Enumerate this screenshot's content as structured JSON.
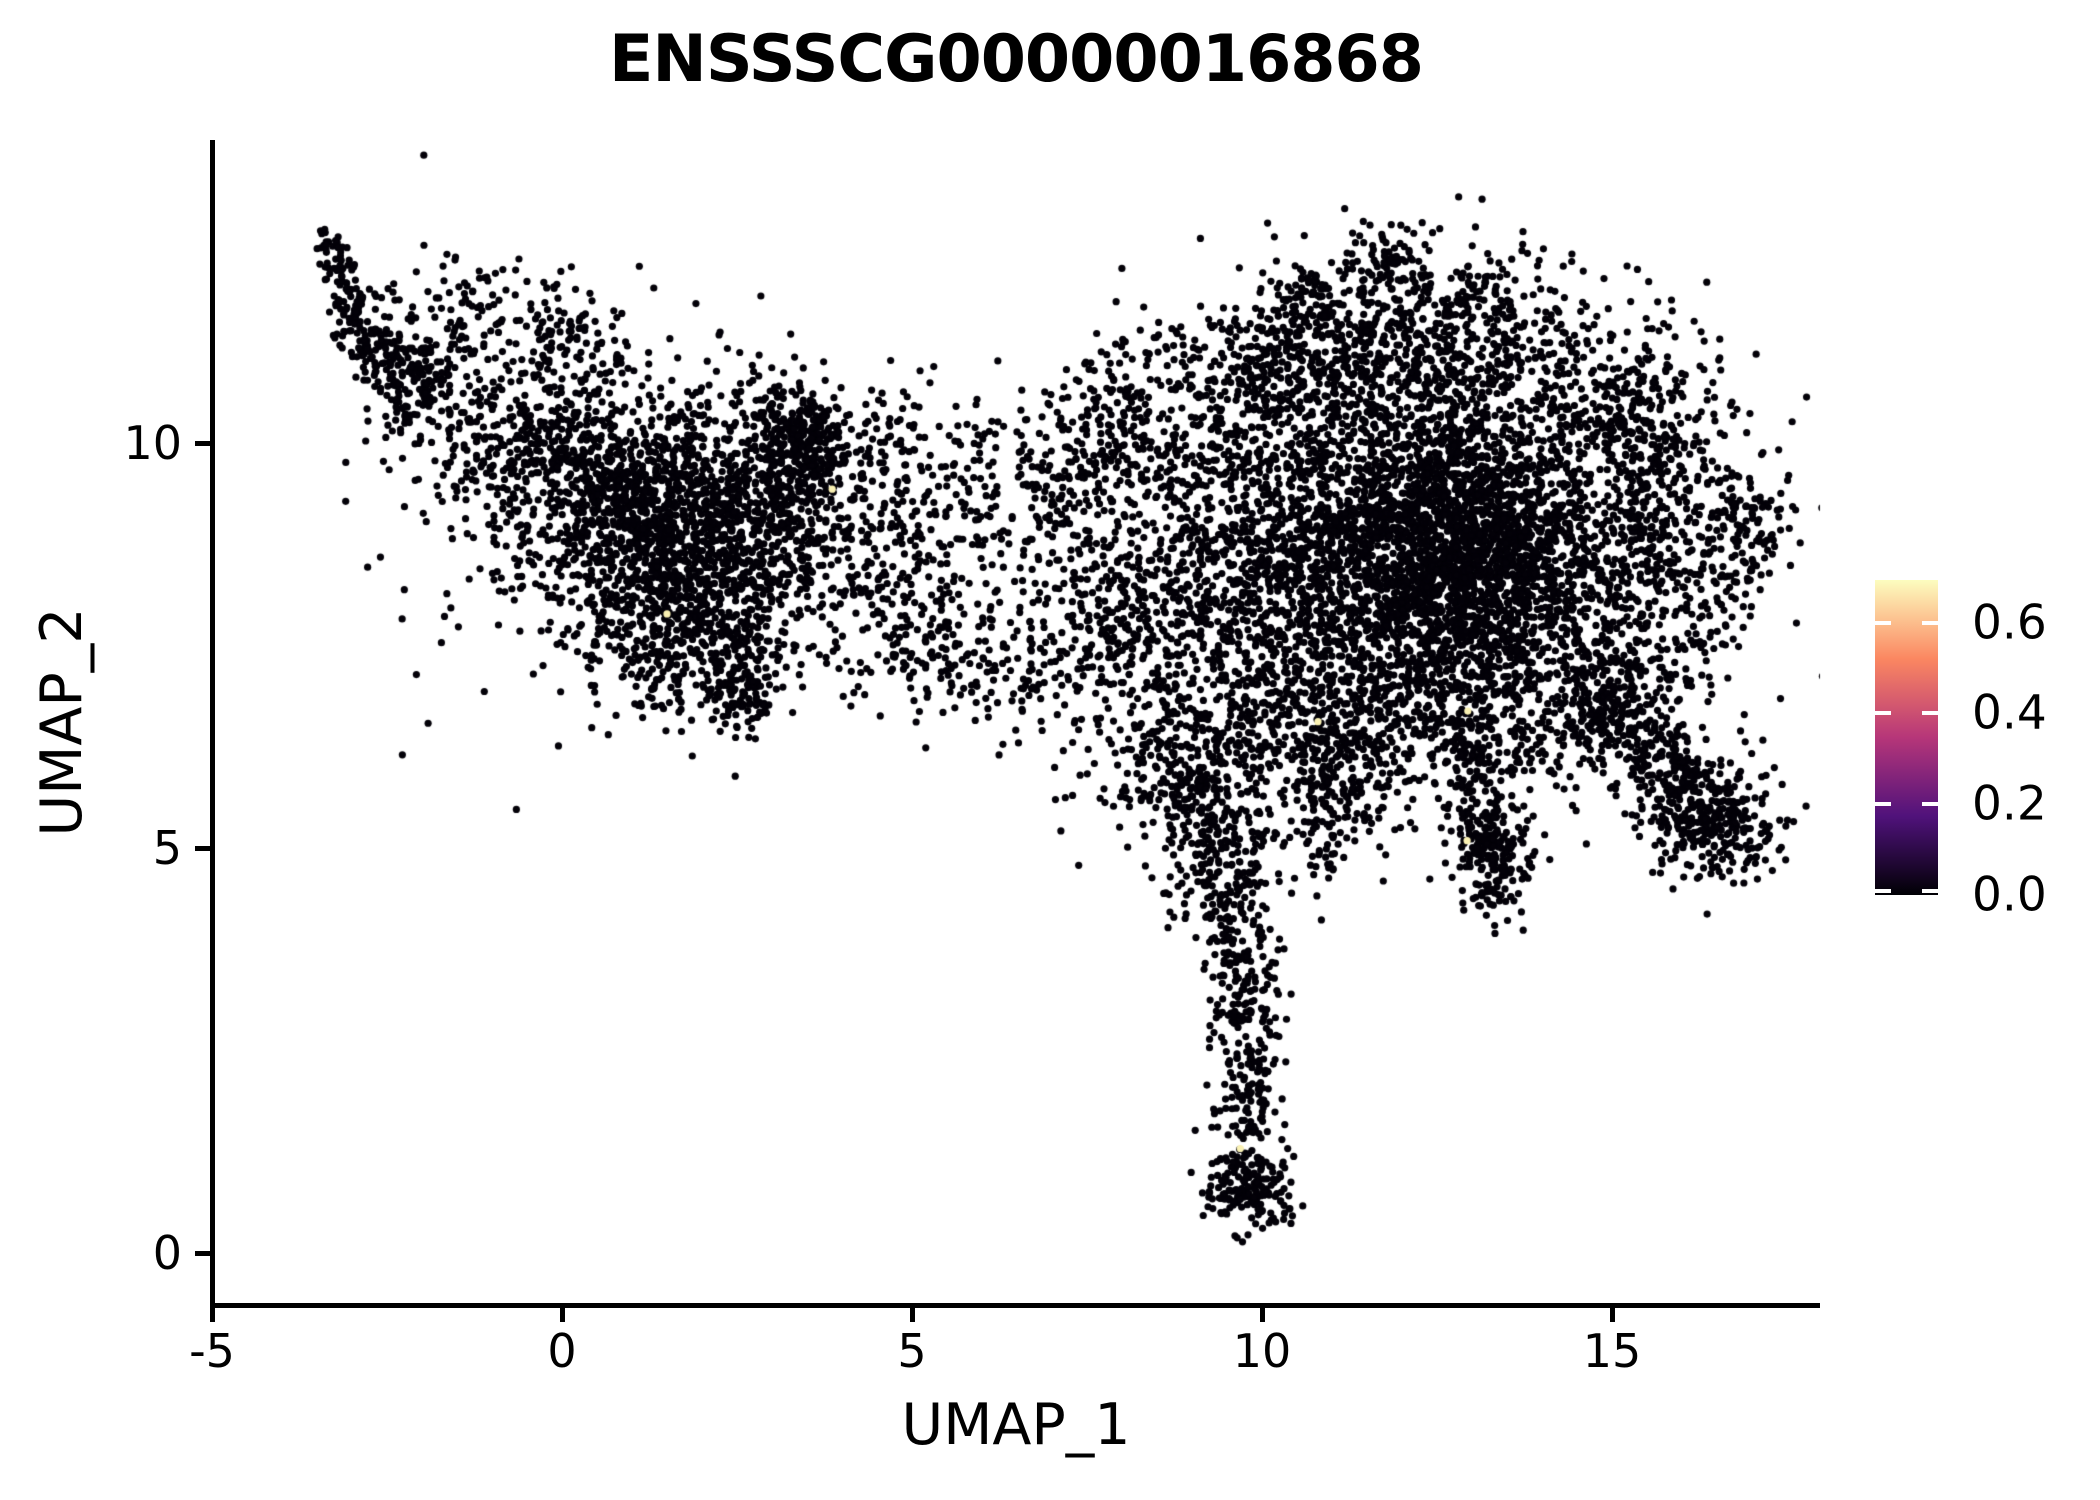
{
  "title": "ENSSSCG00000016868",
  "axes": {
    "x": {
      "label": "UMAP_1",
      "ticks": [
        -5,
        0,
        5,
        10,
        15
      ],
      "tick_labels": [
        "-5",
        "0",
        "5",
        "10",
        "15"
      ]
    },
    "y": {
      "label": "UMAP_2",
      "ticks": [
        0,
        5,
        10
      ],
      "tick_labels": [
        "0",
        "5",
        "10"
      ]
    }
  },
  "colorbar": {
    "tick_values": [
      0.6,
      0.4,
      0.2,
      0.0
    ],
    "tick_labels": [
      "0.6",
      "0.4",
      "0.2",
      "0.0"
    ],
    "value_max": 0.694,
    "colormap": "magma",
    "gradient_stops": [
      "#000004",
      "#50127B",
      "#B63679",
      "#FB8761",
      "#FCFDBF"
    ]
  },
  "chart_data": {
    "type": "scatter",
    "title": "ENSSSCG00000016868",
    "xlabel": "UMAP_1",
    "ylabel": "UMAP_2",
    "xlim": [
      -5.7,
      18.0
    ],
    "ylim": [
      -0.65,
      13.8
    ],
    "x_ticks": [
      -5,
      0,
      5,
      10,
      15
    ],
    "y_ticks": [
      0,
      5,
      10
    ],
    "grid": false,
    "legend_position": "right-colorbar",
    "color_limits": [
      0,
      0.694
    ],
    "colormap": "magma",
    "point_color": "#030108",
    "highlight_color": "#FAF1B3",
    "point_radius_px": 3.6,
    "seed": 1337,
    "n_points_total": 13846,
    "clusters": [
      {
        "type": "strip",
        "x1": -3.35,
        "y1": 12.65,
        "x2": -2.95,
        "y2": 11.35,
        "sigma": 0.12,
        "n": 90
      },
      {
        "type": "strip",
        "x1": -3.05,
        "y1": 11.6,
        "x2": -1.95,
        "y2": 10.5,
        "sigma": 0.26,
        "n": 170
      },
      {
        "type": "gauss",
        "cx": -1.85,
        "cy": 10.9,
        "sx": 0.5,
        "sy": 0.55,
        "n": 150
      },
      {
        "type": "strip",
        "x1": -1.6,
        "y1": 11.9,
        "x2": 0.4,
        "y2": 11.5,
        "sigma": 0.33,
        "n": 70
      },
      {
        "type": "strip",
        "x1": -0.5,
        "y1": 11.35,
        "x2": 0.9,
        "y2": 10.9,
        "sigma": 0.3,
        "n": 60
      },
      {
        "type": "gauss",
        "cx": -0.6,
        "cy": 10.15,
        "sx": 0.7,
        "sy": 0.5,
        "n": 230
      },
      {
        "type": "gauss",
        "cx": 0.8,
        "cy": 9.3,
        "sx": 0.9,
        "sy": 0.75,
        "n": 900
      },
      {
        "type": "gauss",
        "cx": 2.2,
        "cy": 8.6,
        "sx": 0.9,
        "sy": 0.8,
        "n": 820
      },
      {
        "type": "gauss",
        "cx": 3.3,
        "cy": 9.6,
        "sx": 0.7,
        "sy": 0.6,
        "n": 450
      },
      {
        "type": "gauss",
        "cx": 3.42,
        "cy": 10.1,
        "sx": 0.26,
        "sy": 0.2,
        "n": 130
      },
      {
        "type": "gauss",
        "cx": 1.8,
        "cy": 7.5,
        "sx": 0.8,
        "sy": 0.45,
        "n": 260
      },
      {
        "type": "strip",
        "x1": 2.1,
        "y1": 7.0,
        "x2": 2.95,
        "y2": 6.75,
        "sigma": 0.22,
        "n": 80
      },
      {
        "type": "gauss",
        "cx": 1.2,
        "cy": 9.1,
        "sx": 1.6,
        "sy": 1.25,
        "n": 260
      },
      {
        "type": "gauss",
        "cx": 4.8,
        "cy": 8.2,
        "sx": 0.65,
        "sy": 0.8,
        "n": 190
      },
      {
        "type": "gauss",
        "cx": 6.2,
        "cy": 8.4,
        "sx": 0.95,
        "sy": 0.95,
        "n": 170
      },
      {
        "type": "gauss",
        "cx": 5.4,
        "cy": 7.35,
        "sx": 0.3,
        "sy": 0.25,
        "n": 55
      },
      {
        "type": "strip",
        "x1": 4.3,
        "y1": 10.3,
        "x2": 6.6,
        "y2": 9.5,
        "sigma": 0.4,
        "n": 90
      },
      {
        "type": "strip",
        "x1": 6.8,
        "y1": 9.3,
        "x2": 8.3,
        "y2": 10.6,
        "sigma": 0.45,
        "n": 170
      },
      {
        "type": "gauss",
        "cx": 6.3,
        "cy": 6.95,
        "sx": 0.5,
        "sy": 0.25,
        "n": 35
      },
      {
        "type": "gauss",
        "cx": 8.0,
        "cy": 7.9,
        "sx": 0.6,
        "sy": 0.85,
        "n": 360
      },
      {
        "type": "gauss",
        "cx": 12.3,
        "cy": 9.0,
        "sx": 1.7,
        "sy": 1.2,
        "n": 2700
      },
      {
        "type": "gauss",
        "cx": 12.8,
        "cy": 8.5,
        "sx": 1.0,
        "sy": 0.8,
        "n": 1250
      },
      {
        "type": "gauss",
        "cx": 11.6,
        "cy": 11.1,
        "sx": 1.0,
        "sy": 0.6,
        "n": 470
      },
      {
        "type": "strip",
        "x1": 11.2,
        "y1": 12.25,
        "x2": 12.4,
        "y2": 12.05,
        "sigma": 0.28,
        "n": 90
      },
      {
        "type": "strip",
        "x1": 12.6,
        "y1": 11.9,
        "x2": 14.6,
        "y2": 11.1,
        "sigma": 0.35,
        "n": 150
      },
      {
        "type": "strip",
        "x1": 9.6,
        "y1": 10.9,
        "x2": 10.9,
        "y2": 11.9,
        "sigma": 0.3,
        "n": 110
      },
      {
        "type": "gauss",
        "cx": 9.8,
        "cy": 8.3,
        "sx": 0.8,
        "sy": 1.0,
        "n": 520
      },
      {
        "type": "gauss",
        "cx": 9.0,
        "cy": 10.5,
        "sx": 0.8,
        "sy": 0.7,
        "n": 230
      },
      {
        "type": "gauss",
        "cx": 15.6,
        "cy": 8.8,
        "sx": 0.85,
        "sy": 0.95,
        "n": 470
      },
      {
        "type": "gauss",
        "cx": 15.3,
        "cy": 10.5,
        "sx": 0.6,
        "sy": 0.5,
        "n": 180
      },
      {
        "type": "strip",
        "x1": 16.8,
        "y1": 9.6,
        "x2": 17.05,
        "y2": 8.3,
        "sigma": 0.25,
        "n": 70
      },
      {
        "type": "gauss",
        "cx": 11.8,
        "cy": 6.9,
        "sx": 1.2,
        "sy": 0.5,
        "n": 460
      },
      {
        "type": "gauss",
        "cx": 14.8,
        "cy": 7.0,
        "sx": 0.7,
        "sy": 0.4,
        "n": 220
      },
      {
        "type": "gauss",
        "cx": 14.0,
        "cy": 6.2,
        "sx": 0.4,
        "sy": 0.3,
        "n": 60
      },
      {
        "type": "strip",
        "x1": 12.85,
        "y1": 6.6,
        "x2": 13.3,
        "y2": 4.8,
        "sigma": 0.22,
        "n": 170
      },
      {
        "type": "gauss",
        "cx": 13.3,
        "cy": 4.8,
        "sx": 0.3,
        "sy": 0.35,
        "n": 150
      },
      {
        "type": "strip",
        "x1": 14.7,
        "y1": 6.9,
        "x2": 16.5,
        "y2": 5.45,
        "sigma": 0.3,
        "n": 230
      },
      {
        "type": "gauss",
        "cx": 16.55,
        "cy": 5.3,
        "sx": 0.45,
        "sy": 0.35,
        "n": 230
      },
      {
        "type": "strip",
        "x1": 15.2,
        "y1": 6.1,
        "x2": 16.2,
        "y2": 5.2,
        "sigma": 0.3,
        "n": 80
      },
      {
        "type": "gauss",
        "cx": 9.3,
        "cy": 6.2,
        "sx": 0.85,
        "sy": 0.5,
        "n": 310
      },
      {
        "type": "strip",
        "x1": 10.6,
        "y1": 5.6,
        "x2": 11.4,
        "y2": 6.3,
        "sigma": 0.35,
        "n": 90
      },
      {
        "type": "gauss",
        "cx": 10.8,
        "cy": 5.0,
        "sx": 0.3,
        "sy": 0.4,
        "n": 40
      },
      {
        "type": "gauss",
        "cx": 11.6,
        "cy": 5.9,
        "sx": 0.6,
        "sy": 0.5,
        "n": 90
      },
      {
        "type": "strip",
        "x1": 9.0,
        "y1": 6.0,
        "x2": 9.6,
        "y2": 4.3,
        "sigma": 0.45,
        "n": 260
      },
      {
        "type": "strip",
        "x1": 9.6,
        "y1": 4.3,
        "x2": 9.8,
        "y2": 2.6,
        "sigma": 0.3,
        "n": 180
      },
      {
        "type": "strip",
        "x1": 9.8,
        "y1": 2.6,
        "x2": 9.8,
        "y2": 1.4,
        "sigma": 0.22,
        "n": 110
      },
      {
        "type": "gauss",
        "cx": 9.8,
        "cy": 0.85,
        "sx": 0.33,
        "sy": 0.3,
        "n": 140
      },
      {
        "type": "strip",
        "x1": 9.35,
        "y1": 0.55,
        "x2": 10.3,
        "y2": 0.9,
        "sigma": 0.15,
        "n": 40
      }
    ],
    "highlight_points": [
      {
        "x": 3.86,
        "y": 9.43,
        "value": 0.65
      },
      {
        "x": 1.5,
        "y": 7.89,
        "value": 0.65
      },
      {
        "x": 10.8,
        "y": 6.56,
        "value": 0.65
      },
      {
        "x": 12.94,
        "y": 6.69,
        "value": 0.65
      },
      {
        "x": 12.93,
        "y": 5.09,
        "value": 0.65
      },
      {
        "x": 9.69,
        "y": 1.29,
        "value": 0.65
      }
    ]
  }
}
